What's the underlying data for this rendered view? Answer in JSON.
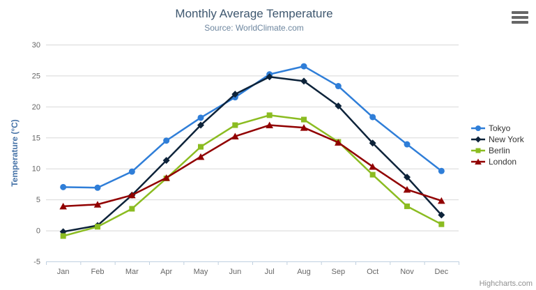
{
  "chart": {
    "title": "Monthly Average Temperature",
    "subtitle": "Source: WorldClimate.com",
    "y_axis_title": "Temperature (°C)",
    "credits": "Highcharts.com"
  },
  "chart_data": {
    "type": "line",
    "title": "Monthly Average Temperature",
    "subtitle": "Source: WorldClimate.com",
    "xlabel": "",
    "ylabel": "Temperature (°C)",
    "ylim": [
      -5,
      30
    ],
    "ytick_step": 5,
    "grid": true,
    "legend_position": "right",
    "categories": [
      "Jan",
      "Feb",
      "Mar",
      "Apr",
      "May",
      "Jun",
      "Jul",
      "Aug",
      "Sep",
      "Oct",
      "Nov",
      "Dec"
    ],
    "series": [
      {
        "name": "Tokyo",
        "marker": "circle",
        "color": "#2f7ed8",
        "values": [
          7.0,
          6.9,
          9.5,
          14.5,
          18.2,
          21.5,
          25.2,
          26.5,
          23.3,
          18.3,
          13.9,
          9.6
        ]
      },
      {
        "name": "New York",
        "marker": "diamond",
        "color": "#0d233a",
        "values": [
          -0.2,
          0.8,
          5.7,
          11.3,
          17.0,
          22.0,
          24.8,
          24.1,
          20.1,
          14.1,
          8.6,
          2.5
        ]
      },
      {
        "name": "Berlin",
        "marker": "square",
        "color": "#8bbc21",
        "values": [
          -0.9,
          0.6,
          3.5,
          8.4,
          13.5,
          17.0,
          18.6,
          17.9,
          14.3,
          9.0,
          3.9,
          1.0
        ]
      },
      {
        "name": "London",
        "marker": "triangle",
        "color": "#910000",
        "values": [
          3.9,
          4.2,
          5.7,
          8.5,
          11.9,
          15.2,
          17.0,
          16.6,
          14.2,
          10.3,
          6.6,
          4.8
        ]
      }
    ]
  },
  "colors": {
    "title": "#3E576F",
    "subtitle": "#6D869F",
    "axis_label": "#666666",
    "grid": "#D8D8D8",
    "axis_line": "#C0D0E0",
    "y_title": "#4572A7",
    "legend_text": "#333333",
    "credits": "#909090",
    "menu_icon": "#666666"
  }
}
